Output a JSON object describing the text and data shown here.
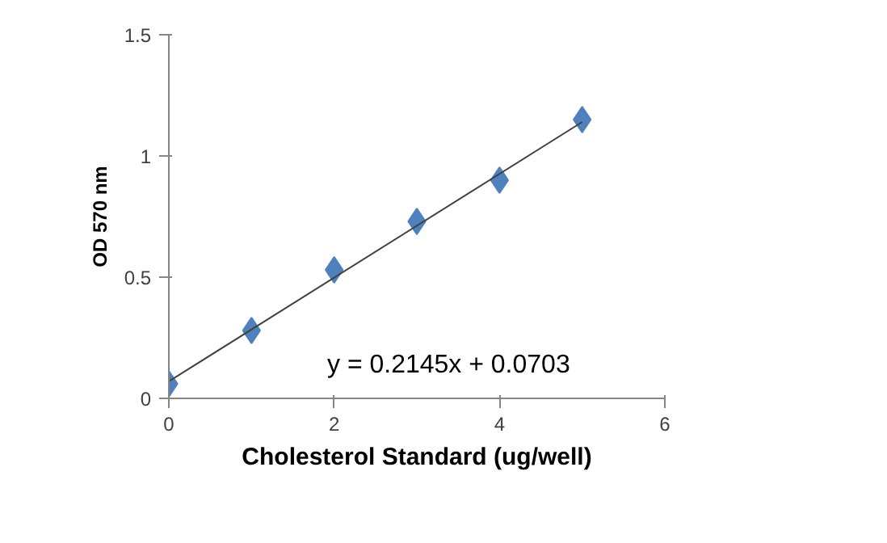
{
  "chart_data": {
    "type": "scatter",
    "xlabel": "Cholesterol Standard (ug/well)",
    "ylabel": "OD 570 nm",
    "x": [
      0,
      1,
      2,
      3,
      4,
      5
    ],
    "series": [
      {
        "color": "#4f81bd",
        "marker": "diamond",
        "values": [
          0.06,
          0.28,
          0.53,
          0.73,
          0.9,
          1.15
        ]
      },
      {
        "type": "line",
        "color": "#404040",
        "x": [
          0,
          5
        ],
        "values": [
          0.07,
          1.14
        ],
        "line_style": "solid"
      }
    ],
    "xlim": [
      0,
      6
    ],
    "ylim": [
      0,
      1.5
    ],
    "xticks": [
      0,
      2,
      4,
      6
    ],
    "yticks": [
      0,
      0.5,
      1,
      1.5
    ],
    "grid": false,
    "annotations": [
      "y = 0.2145x + 0.0703"
    ]
  }
}
